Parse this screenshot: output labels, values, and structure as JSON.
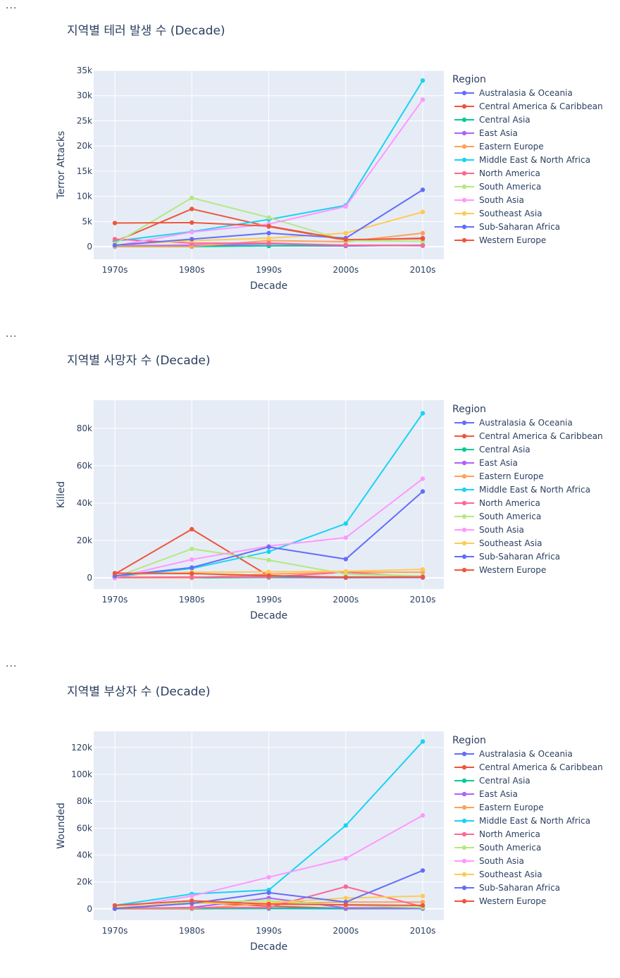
{
  "cells": [
    {
      "ellipsis": "..."
    },
    {
      "ellipsis": "..."
    },
    {
      "ellipsis": "..."
    }
  ],
  "colors": {
    "Australasia & Oceania": "#636efa",
    "Central America & Caribbean": "#EF553B",
    "Central Asia": "#00cc96",
    "East Asia": "#ab63fa",
    "Eastern Europe": "#FFA15A",
    "Middle East & North Africa": "#19d3f3",
    "North America": "#FF6692",
    "South America": "#B6E880",
    "South Asia": "#FF97FF",
    "Southeast Asia": "#FECB52",
    "Sub-Saharan Africa": "#636efa",
    "Western Europe": "#EF553B"
  },
  "chart_data": [
    {
      "type": "line",
      "title": "지역별 테러 발생 수 (Decade)",
      "xlabel": "Decade",
      "ylabel": "Terror Attacks",
      "legend_title": "Region",
      "legend_position": "right",
      "grid": true,
      "categories": [
        "1970s",
        "1980s",
        "1990s",
        "2000s",
        "2010s"
      ],
      "ylim": [
        -2500,
        35000
      ],
      "yticks": [
        0,
        5000,
        10000,
        15000,
        20000,
        25000,
        30000,
        35000
      ],
      "ytick_labels": [
        "0",
        "5k",
        "10k",
        "15k",
        "20k",
        "25k",
        "30k",
        "35k"
      ],
      "series": [
        {
          "name": "Australasia & Oceania",
          "values": [
            100,
            150,
            200,
            150,
            300
          ]
        },
        {
          "name": "Central America & Caribbean",
          "values": [
            1000,
            7500,
            4000,
            1300,
            1700
          ]
        },
        {
          "name": "Central Asia",
          "values": [
            10,
            10,
            150,
            300,
            250
          ]
        },
        {
          "name": "East Asia",
          "values": [
            200,
            300,
            600,
            300,
            200
          ]
        },
        {
          "name": "Eastern Europe",
          "values": [
            50,
            50,
            1200,
            1000,
            2700
          ]
        },
        {
          "name": "Middle East & North Africa",
          "values": [
            1100,
            3000,
            5400,
            8200,
            33000
          ]
        },
        {
          "name": "North America",
          "values": [
            1500,
            700,
            700,
            300,
            250
          ]
        },
        {
          "name": "South America",
          "values": [
            600,
            9700,
            5800,
            1200,
            1100
          ]
        },
        {
          "name": "South Asia",
          "values": [
            200,
            2900,
            4500,
            8000,
            29200
          ]
        },
        {
          "name": "Southeast Asia",
          "values": [
            300,
            1200,
            1700,
            2700,
            6900
          ]
        },
        {
          "name": "Sub-Saharan Africa",
          "values": [
            300,
            1500,
            2700,
            1700,
            11300
          ]
        },
        {
          "name": "Western Europe",
          "values": [
            4700,
            4800,
            4100,
            1400,
            1600
          ]
        }
      ]
    },
    {
      "type": "line",
      "title": "지역별 사망자 수 (Decade)",
      "xlabel": "Decade",
      "ylabel": "Killed",
      "legend_title": "Region",
      "legend_position": "right",
      "grid": true,
      "categories": [
        "1970s",
        "1980s",
        "1990s",
        "2000s",
        "2010s"
      ],
      "ylim": [
        -6000,
        95000
      ],
      "yticks": [
        0,
        20000,
        40000,
        60000,
        80000
      ],
      "ytick_labels": [
        "0",
        "20k",
        "40k",
        "60k",
        "80k"
      ],
      "series": [
        {
          "name": "Australasia & Oceania",
          "values": [
            50,
            100,
            200,
            100,
            150
          ]
        },
        {
          "name": "Central America & Caribbean",
          "values": [
            2000,
            26000,
            1000,
            200,
            400
          ]
        },
        {
          "name": "Central Asia",
          "values": [
            10,
            10,
            300,
            500,
            500
          ]
        },
        {
          "name": "East Asia",
          "values": [
            100,
            300,
            800,
            300,
            300
          ]
        },
        {
          "name": "Eastern Europe",
          "values": [
            10,
            50,
            2000,
            3000,
            3000
          ]
        },
        {
          "name": "Middle East & North Africa",
          "values": [
            500,
            5000,
            14000,
            29000,
            88000
          ]
        },
        {
          "name": "North America",
          "values": [
            300,
            400,
            500,
            3000,
            300
          ]
        },
        {
          "name": "South America",
          "values": [
            300,
            15500,
            9500,
            2000,
            1000
          ]
        },
        {
          "name": "South Asia",
          "values": [
            200,
            9800,
            17000,
            21500,
            53000
          ]
        },
        {
          "name": "Southeast Asia",
          "values": [
            1500,
            3000,
            3200,
            3500,
            4500
          ]
        },
        {
          "name": "Sub-Saharan Africa",
          "values": [
            1000,
            5500,
            16500,
            10000,
            46200
          ]
        },
        {
          "name": "Western Europe",
          "values": [
            2500,
            2300,
            1200,
            300,
            500
          ]
        }
      ]
    },
    {
      "type": "line",
      "title": "지역별 부상자 수 (Decade)",
      "xlabel": "Decade",
      "ylabel": "Wounded",
      "legend_title": "Region",
      "legend_position": "right",
      "grid": true,
      "categories": [
        "1970s",
        "1980s",
        "1990s",
        "2000s",
        "2010s"
      ],
      "ylim": [
        -8500,
        132000
      ],
      "yticks": [
        0,
        20000,
        40000,
        60000,
        80000,
        100000,
        120000
      ],
      "ytick_labels": [
        "0",
        "20k",
        "40k",
        "60k",
        "80k",
        "100k",
        "120k"
      ],
      "series": [
        {
          "name": "Australasia & Oceania",
          "values": [
            50,
            100,
            200,
            100,
            150
          ]
        },
        {
          "name": "Central America & Caribbean",
          "values": [
            500,
            5000,
            2000,
            300,
            500
          ]
        },
        {
          "name": "Central Asia",
          "values": [
            10,
            10,
            500,
            500,
            500
          ]
        },
        {
          "name": "East Asia",
          "values": [
            100,
            1000,
            8000,
            700,
            700
          ]
        },
        {
          "name": "Eastern Europe",
          "values": [
            100,
            200,
            4000,
            5000,
            5000
          ]
        },
        {
          "name": "Middle East & North Africa",
          "values": [
            2500,
            11000,
            14000,
            62000,
            124500
          ]
        },
        {
          "name": "North America",
          "values": [
            500,
            800,
            1000,
            16500,
            1500
          ]
        },
        {
          "name": "South America",
          "values": [
            300,
            5000,
            6000,
            2500,
            1000
          ]
        },
        {
          "name": "South Asia",
          "values": [
            300,
            9500,
            23500,
            37500,
            69500
          ]
        },
        {
          "name": "Southeast Asia",
          "values": [
            1000,
            4000,
            4500,
            8000,
            9500
          ]
        },
        {
          "name": "Sub-Saharan Africa",
          "values": [
            200,
            4000,
            12000,
            5000,
            28500
          ]
        },
        {
          "name": "Western Europe",
          "values": [
            2500,
            6000,
            3500,
            3000,
            2500
          ]
        }
      ]
    }
  ]
}
